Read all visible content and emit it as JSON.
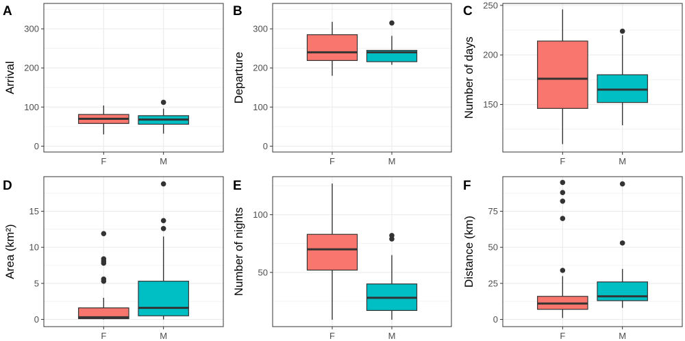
{
  "colors": {
    "female": "#F8766D",
    "male": "#00BFC4",
    "median": "#333333",
    "panel_border": "#333333",
    "grid_major": "#ebebeb",
    "tick_text": "#4d4d4d"
  },
  "chart_data": [
    {
      "panel": "A",
      "type": "boxplot",
      "ylabel": "Arrival",
      "xlabel": "",
      "categories": [
        "F",
        "M"
      ],
      "ylim": [
        -15,
        365
      ],
      "yticks": [
        0,
        100,
        200,
        300
      ],
      "boxes": [
        {
          "group": "F",
          "min": 30,
          "q1": 58,
          "median": 70,
          "q3": 81,
          "max": 104,
          "outliers": []
        },
        {
          "group": "M",
          "min": 32,
          "q1": 56,
          "median": 68,
          "q3": 78,
          "max": 96,
          "outliers": [
            112
          ]
        }
      ]
    },
    {
      "panel": "B",
      "type": "boxplot",
      "ylabel": "Departure",
      "xlabel": "",
      "categories": [
        "F",
        "M"
      ],
      "ylim": [
        -15,
        365
      ],
      "yticks": [
        0,
        100,
        200,
        300
      ],
      "boxes": [
        {
          "group": "F",
          "min": 180,
          "q1": 219,
          "median": 240,
          "q3": 285,
          "max": 318,
          "outliers": []
        },
        {
          "group": "M",
          "min": 208,
          "q1": 216,
          "median": 240,
          "q3": 245,
          "max": 282,
          "outliers": [
            315
          ]
        }
      ]
    },
    {
      "panel": "C",
      "type": "boxplot",
      "ylabel": "Number of days",
      "xlabel": "",
      "categories": [
        "F",
        "M"
      ],
      "ylim": [
        102,
        252
      ],
      "yticks": [
        150,
        200,
        250
      ],
      "boxes": [
        {
          "group": "F",
          "min": 110,
          "q1": 146,
          "median": 176,
          "q3": 214,
          "max": 246,
          "outliers": []
        },
        {
          "group": "M",
          "min": 129,
          "q1": 152,
          "median": 165,
          "q3": 180,
          "max": 220,
          "outliers": [
            224
          ]
        }
      ]
    },
    {
      "panel": "D",
      "type": "boxplot",
      "ylabel": "Area (km²)",
      "xlabel": "",
      "categories": [
        "F",
        "M"
      ],
      "ylim": [
        -1,
        19.8
      ],
      "yticks": [
        0,
        5,
        10,
        15
      ],
      "boxes": [
        {
          "group": "F",
          "min": 0,
          "q1": 0.1,
          "median": 0.3,
          "q3": 1.6,
          "max": 3,
          "outliers": [
            5.3,
            5.6,
            7.8,
            8.1,
            8.4,
            11.9
          ]
        },
        {
          "group": "M",
          "min": 0,
          "q1": 0.5,
          "median": 1.6,
          "q3": 5.3,
          "max": 11.5,
          "outliers": [
            12.6,
            13.7,
            18.8
          ]
        }
      ]
    },
    {
      "panel": "E",
      "type": "boxplot",
      "ylabel": "Number of nights",
      "xlabel": "",
      "categories": [
        "F",
        "M"
      ],
      "ylim": [
        3,
        133
      ],
      "yticks": [
        50,
        100
      ],
      "boxes": [
        {
          "group": "F",
          "min": 9,
          "q1": 52,
          "median": 70,
          "q3": 83,
          "max": 127,
          "outliers": []
        },
        {
          "group": "M",
          "min": 9,
          "q1": 17,
          "median": 28,
          "q3": 40,
          "max": 65,
          "outliers": [
            79,
            82
          ]
        }
      ]
    },
    {
      "panel": "F",
      "type": "boxplot",
      "ylabel": "Distance (km)",
      "xlabel": "",
      "categories": [
        "F",
        "M"
      ],
      "ylim": [
        -5,
        99
      ],
      "yticks": [
        0,
        25,
        50,
        75
      ],
      "boxes": [
        {
          "group": "F",
          "min": 1,
          "q1": 7,
          "median": 11,
          "q3": 16,
          "max": 30,
          "outliers": [
            34,
            70,
            82,
            88,
            95
          ]
        },
        {
          "group": "M",
          "min": 8,
          "q1": 13,
          "median": 16,
          "q3": 26,
          "max": 35,
          "outliers": [
            53,
            94
          ]
        }
      ]
    }
  ]
}
